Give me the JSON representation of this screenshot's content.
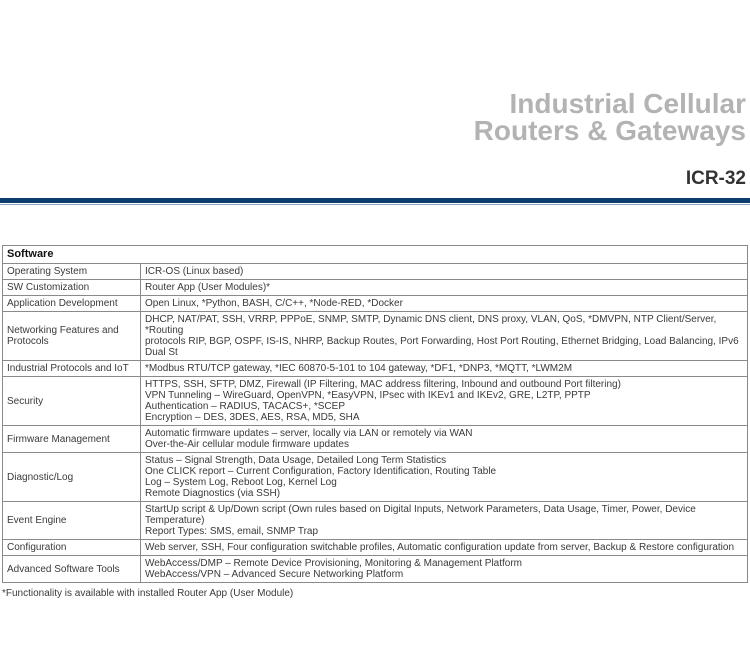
{
  "header": {
    "title_line1": "Industrial Cellular",
    "title_line2": "Routers & Gateways",
    "model": "ICR-32",
    "rule_color": "#0d3c6e"
  },
  "table": {
    "section": "Software",
    "rows": [
      {
        "label": "Operating System",
        "lines": [
          "ICR-OS (Linux based)"
        ]
      },
      {
        "label": "SW Customization",
        "lines": [
          "Router App (User Modules)*"
        ]
      },
      {
        "label": "Application Development",
        "lines": [
          "Open Linux, *Python, BASH, C/C++, *Node-RED, *Docker"
        ]
      },
      {
        "label": "Networking Features and Protocols",
        "lines": [
          "DHCP, NAT/PAT, SSH, VRRP, PPPoE, SNMP, SMTP, Dynamic DNS client, DNS proxy, VLAN, QoS, *DMVPN, NTP Client/Server, *Routing",
          "protocols RIP, BGP, OSPF, IS-IS, NHRP, Backup Routes, Port Forwarding, Host Port Routing, Ethernet Bridging, Load Balancing, IPv6 Dual St"
        ]
      },
      {
        "label": "Industrial Protocols and IoT",
        "lines": [
          "*Modbus RTU/TCP gateway, *IEC 60870-5-101 to 104 gateway, *DF1, *DNP3, *MQTT, *LWM2M"
        ]
      },
      {
        "label": "Security",
        "lines": [
          "HTTPS, SSH, SFTP, DMZ, Firewall (IP Filtering, MAC address filtering, Inbound and outbound Port filtering)",
          "VPN Tunneling – WireGuard, OpenVPN, *EasyVPN, IPsec with IKEv1 and IKEv2, GRE, L2TP, PPTP",
          "Authentication – RADIUS, TACACS+, *SCEP",
          "Encryption – DES, 3DES, AES, RSA, MD5, SHA"
        ]
      },
      {
        "label": "Firmware Management",
        "lines": [
          "Automatic firmware updates – server, locally via LAN or remotely via WAN",
          "Over-the-Air cellular module firmware updates"
        ]
      },
      {
        "label": "Diagnostic/Log",
        "lines": [
          "Status – Signal Strength, Data Usage, Detailed Long Term Statistics",
          "One CLICK report – Current Configuration, Factory Identification, Routing Table",
          "Log – System Log, Reboot Log, Kernel Log",
          "Remote Diagnostics (via SSH)"
        ]
      },
      {
        "label": "Event Engine",
        "lines": [
          "StartUp script & Up/Down script (Own rules based on Digital Inputs, Network Parameters, Data Usage, Timer, Power, Device Temperature)",
          "Report Types: SMS, email, SNMP Trap"
        ]
      },
      {
        "label": "Configuration",
        "lines": [
          "Web server, SSH, Four configuration switchable profiles, Automatic configuration update from server, Backup & Restore configuration"
        ]
      },
      {
        "label": "Advanced Software Tools",
        "lines": [
          "WebAccess/DMP – Remote Device Provisioning, Monitoring & Management Platform",
          "WebAccess/VPN – Advanced Secure Networking Platform"
        ]
      }
    ],
    "footnote": "*Functionality is available with installed Router App (User Module)"
  }
}
